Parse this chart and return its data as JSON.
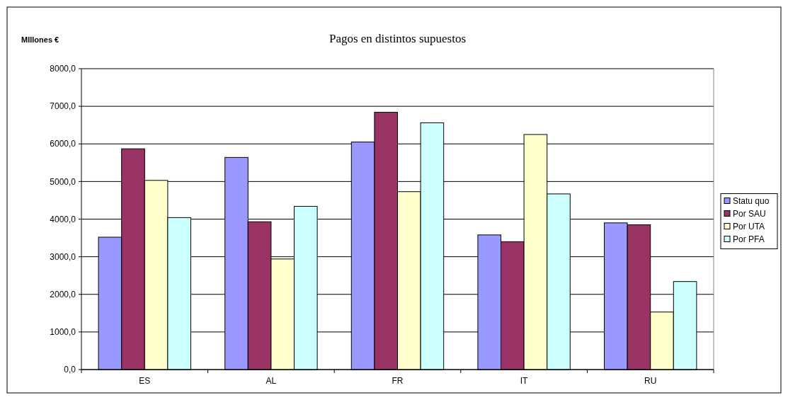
{
  "chart_data": {
    "type": "bar",
    "title": "Pagos en distintos supuestos",
    "ylabel": "MIllones €",
    "categories": [
      "ES",
      "AL",
      "FR",
      "IT",
      "RU"
    ],
    "series": [
      {
        "name": "Statu quo",
        "color": "#9999ff",
        "values": [
          3520,
          5640,
          6050,
          3580,
          3900
        ]
      },
      {
        "name": "Por SAU",
        "color": "#993366",
        "values": [
          5870,
          3930,
          6840,
          3400,
          3850
        ]
      },
      {
        "name": "Por UTA",
        "color": "#ffffcc",
        "values": [
          5030,
          2940,
          4730,
          6250,
          1530
        ]
      },
      {
        "name": "Por PFA",
        "color": "#ccffff",
        "values": [
          4040,
          4340,
          6560,
          4670,
          2340
        ]
      }
    ],
    "ylim": [
      0,
      8000
    ],
    "yticks": [
      {
        "value": 0,
        "label": "0,0"
      },
      {
        "value": 1000,
        "label": "1000,0"
      },
      {
        "value": 2000,
        "label": "2000,0"
      },
      {
        "value": 3000,
        "label": "3000,0"
      },
      {
        "value": 4000,
        "label": "4000,0"
      },
      {
        "value": 5000,
        "label": "5000,0"
      },
      {
        "value": 6000,
        "label": "6000,0"
      },
      {
        "value": 7000,
        "label": "7000,0"
      },
      {
        "value": 8000,
        "label": "8000,0"
      }
    ],
    "grid": "y",
    "legend": "right"
  }
}
